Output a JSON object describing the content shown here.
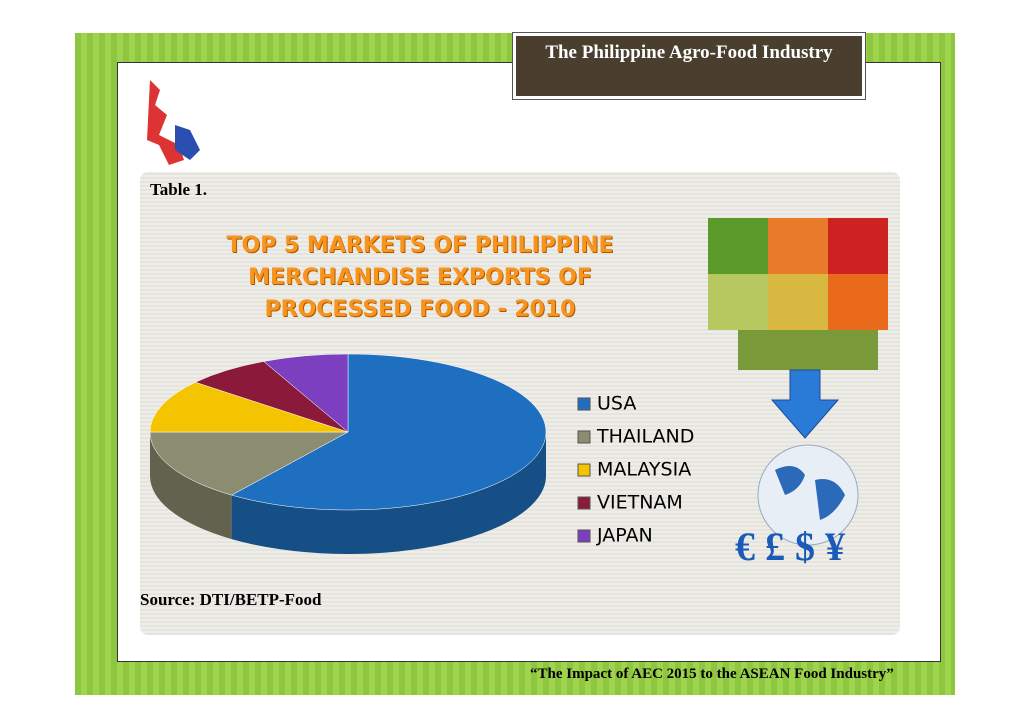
{
  "header": {
    "title": "The Philippine Agro-Food Industry"
  },
  "table_label": "Table 1.",
  "source": "Source: DTI/BETP-Food",
  "footer": "“The Impact of AEC 2015 to the ASEAN Food Industry”",
  "chart_data": {
    "type": "pie",
    "title": "TOP 5 MARKETS OF PHILIPPINE MERCHANDISE EXPORTS OF PROCESSED FOOD - 2010",
    "categories": [
      "USA",
      "THAILAND",
      "MALAYSIA",
      "VIETNAM",
      "JAPAN"
    ],
    "values": [
      60,
      15,
      11,
      7,
      7
    ],
    "colors": [
      "#1f6fc0",
      "#8c8c70",
      "#f5c400",
      "#8b1a3a",
      "#7b3fbf"
    ]
  }
}
